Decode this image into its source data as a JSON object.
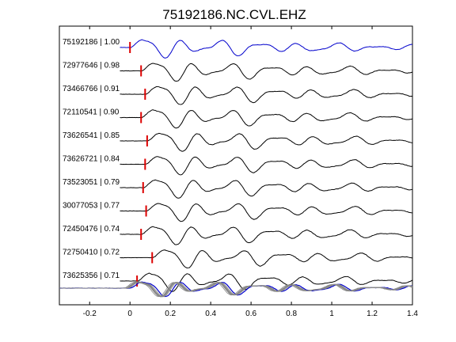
{
  "chart_data": {
    "type": "line",
    "title": "75192186.NC.CVL.EHZ",
    "xlabel": "",
    "ylabel": "",
    "xlim": [
      -0.35,
      1.4
    ],
    "xticks": [
      -0.2,
      0,
      0.2,
      0.4,
      0.6,
      0.8,
      1,
      1.2,
      1.4
    ],
    "xtick_labels": [
      "-0.2",
      "0",
      "0.2",
      "0.4",
      "0.6",
      "0.8",
      "1",
      "1.2",
      "1.4"
    ],
    "grid": false,
    "legend": "none",
    "colors": {
      "reference": "#0000cc",
      "trace": "#000000",
      "pick": "#dd0000",
      "overlay": "#888888"
    },
    "series": [
      {
        "label": "75192186 | 1.00",
        "pick": 0.0,
        "reference": true
      },
      {
        "label": "72977646 | 0.98",
        "pick": 0.055
      },
      {
        "label": "73466766 | 0.91",
        "pick": 0.075
      },
      {
        "label": "72110541 | 0.90",
        "pick": 0.055
      },
      {
        "label": "73626541 | 0.85",
        "pick": 0.085
      },
      {
        "label": "73626721 | 0.84",
        "pick": 0.075
      },
      {
        "label": "73523051 | 0.79",
        "pick": 0.065
      },
      {
        "label": "30077053 | 0.77",
        "pick": 0.08
      },
      {
        "label": "72450476 | 0.74",
        "pick": 0.055
      },
      {
        "label": "72750410 | 0.72",
        "pick": 0.11
      },
      {
        "label": "73625356 | 0.71",
        "pick": 0.035
      }
    ]
  }
}
